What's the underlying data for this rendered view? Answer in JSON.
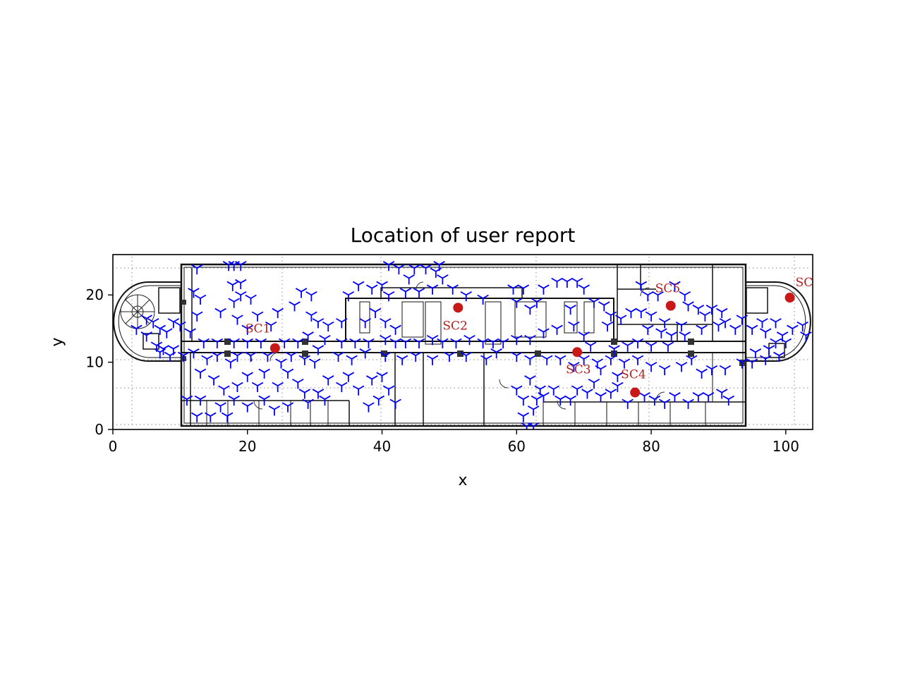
{
  "chart_data": {
    "type": "scatter",
    "title": "Location of user report",
    "xlabel": "x",
    "ylabel": "y",
    "xlim": [
      0,
      104
    ],
    "ylim": [
      0,
      26
    ],
    "xticks": [
      "0",
      "20",
      "40",
      "60",
      "80",
      "100"
    ],
    "yticks": [
      "0",
      "10",
      "20"
    ],
    "grid": false,
    "background": "floor plan",
    "colors": {
      "reports": "#0000ff",
      "small_cells": "#c81818",
      "labels": "#b21e1e"
    },
    "small_cells": [
      {
        "label": "SC1",
        "x": 24.1,
        "y": 12.1
      },
      {
        "label": "SC2",
        "x": 51.3,
        "y": 18.1
      },
      {
        "label": "SC3",
        "x": 69.0,
        "y": 11.5
      },
      {
        "label": "SC4",
        "x": 77.6,
        "y": 5.5
      },
      {
        "label": "SC5",
        "x": 82.9,
        "y": 18.4
      },
      {
        "label": "SC",
        "x": 100.6,
        "y": 19.6
      }
    ],
    "user_reports": {
      "marker": "tri_down",
      "points": [
        [
          12.5,
          24.0
        ],
        [
          17.2,
          24.5
        ],
        [
          18.0,
          24.5
        ],
        [
          19.0,
          24.5
        ],
        [
          12.0,
          20.5
        ],
        [
          13.0,
          19.5
        ],
        [
          12.5,
          17.0
        ],
        [
          16.0,
          17.5
        ],
        [
          18.0,
          19.0
        ],
        [
          19.0,
          20.0
        ],
        [
          20.5,
          19.5
        ],
        [
          18.5,
          16.5
        ],
        [
          20.0,
          15.0
        ],
        [
          21.5,
          17.0
        ],
        [
          23.5,
          15.5
        ],
        [
          24.5,
          17.5
        ],
        [
          17.8,
          21.5
        ],
        [
          19.0,
          21.8
        ],
        [
          28.0,
          20.5
        ],
        [
          29.5,
          20.0
        ],
        [
          27.0,
          18.5
        ],
        [
          29.5,
          17.0
        ],
        [
          30.5,
          16.0
        ],
        [
          32.0,
          15.5
        ],
        [
          34.0,
          16.0
        ],
        [
          35.0,
          20.0
        ],
        [
          36.5,
          21.5
        ],
        [
          38.5,
          21.0
        ],
        [
          40.0,
          21.5
        ],
        [
          41.0,
          20.0
        ],
        [
          39.0,
          17.5
        ],
        [
          37.5,
          16.0
        ],
        [
          40.5,
          16.0
        ],
        [
          42.0,
          15.0
        ],
        [
          43.5,
          20.5
        ],
        [
          44.0,
          22.5
        ],
        [
          44.8,
          24.0
        ],
        [
          45.5,
          20.5
        ],
        [
          46.5,
          24.0
        ],
        [
          48.0,
          23.5
        ],
        [
          48.5,
          24.5
        ],
        [
          49.0,
          22.5
        ],
        [
          50.5,
          21.0
        ],
        [
          52.5,
          20.0
        ],
        [
          55.0,
          19.5
        ],
        [
          42.5,
          24.0
        ],
        [
          41.0,
          24.5
        ],
        [
          47.5,
          21.0
        ],
        [
          59.5,
          21.0
        ],
        [
          61.0,
          21.0
        ],
        [
          60.0,
          19.0
        ],
        [
          62.0,
          18.0
        ],
        [
          63.0,
          19.0
        ],
        [
          64.0,
          21.0
        ],
        [
          66.0,
          22.0
        ],
        [
          67.5,
          22.0
        ],
        [
          69.0,
          22.0
        ],
        [
          70.0,
          21.0
        ],
        [
          68.0,
          18.0
        ],
        [
          71.5,
          19.0
        ],
        [
          73.0,
          18.5
        ],
        [
          74.0,
          17.0
        ],
        [
          73.5,
          15.5
        ],
        [
          75.5,
          16.5
        ],
        [
          77.0,
          17.5
        ],
        [
          78.5,
          17.5
        ],
        [
          79.5,
          20.0
        ],
        [
          78.5,
          21.5
        ],
        [
          81.0,
          20.0
        ],
        [
          83.5,
          21.5
        ],
        [
          85.0,
          20.0
        ],
        [
          85.5,
          18.5
        ],
        [
          87.0,
          18.0
        ],
        [
          88.0,
          17.0
        ],
        [
          89.0,
          18.0
        ],
        [
          90.5,
          17.5
        ],
        [
          91.0,
          16.0
        ],
        [
          92.5,
          15.0
        ],
        [
          93.5,
          16.5
        ],
        [
          90.0,
          15.5
        ],
        [
          87.5,
          15.0
        ],
        [
          84.5,
          15.5
        ],
        [
          82.0,
          16.0
        ],
        [
          80.0,
          17.0
        ],
        [
          79.5,
          15.0
        ],
        [
          81.5,
          14.5
        ],
        [
          83.0,
          14.0
        ],
        [
          85.0,
          14.0
        ],
        [
          82.5,
          12.5
        ],
        [
          80.0,
          12.5
        ],
        [
          78.0,
          13.0
        ],
        [
          76.5,
          12.5
        ],
        [
          74.5,
          12.0
        ],
        [
          71.0,
          12.5
        ],
        [
          70.0,
          14.0
        ],
        [
          68.5,
          15.5
        ],
        [
          66.0,
          15.0
        ],
        [
          64.0,
          14.5
        ],
        [
          62.0,
          13.5
        ],
        [
          60.0,
          13.5
        ],
        [
          58.0,
          13.0
        ],
        [
          56.5,
          13.0
        ],
        [
          55.0,
          13.0
        ],
        [
          53.0,
          13.5
        ],
        [
          51.0,
          13.0
        ],
        [
          49.0,
          13.0
        ],
        [
          47.5,
          13.5
        ],
        [
          45.5,
          13.0
        ],
        [
          43.5,
          13.0
        ],
        [
          42.0,
          13.0
        ],
        [
          40.5,
          13.5
        ],
        [
          38.0,
          13.0
        ],
        [
          36.0,
          13.0
        ],
        [
          34.0,
          13.0
        ],
        [
          31.5,
          13.5
        ],
        [
          29.0,
          14.0
        ],
        [
          27.5,
          13.0
        ],
        [
          25.5,
          13.0
        ],
        [
          22.0,
          13.0
        ],
        [
          20.0,
          13.0
        ],
        [
          18.0,
          13.0
        ],
        [
          15.5,
          13.0
        ],
        [
          13.5,
          13.0
        ],
        [
          11.5,
          14.5
        ],
        [
          10.0,
          15.5
        ],
        [
          9.0,
          16.0
        ],
        [
          8.0,
          14.5
        ],
        [
          7.0,
          15.0
        ],
        [
          6.0,
          16.0
        ],
        [
          5.0,
          16.5
        ],
        [
          3.5,
          15.0
        ],
        [
          5.0,
          14.0
        ],
        [
          6.5,
          12.5
        ],
        [
          7.5,
          12.0
        ],
        [
          9.0,
          12.0
        ],
        [
          8.5,
          11.0
        ],
        [
          7.0,
          11.5
        ],
        [
          10.5,
          11.0
        ],
        [
          12.0,
          11.5
        ],
        [
          14.0,
          10.5
        ],
        [
          15.5,
          11.0
        ],
        [
          17.5,
          10.0
        ],
        [
          18.5,
          11.0
        ],
        [
          20.5,
          11.0
        ],
        [
          23.0,
          11.0
        ],
        [
          25.0,
          10.0
        ],
        [
          26.5,
          11.0
        ],
        [
          28.5,
          10.5
        ],
        [
          30.0,
          10.0
        ],
        [
          30.5,
          12.0
        ],
        [
          33.5,
          11.0
        ],
        [
          35.5,
          10.5
        ],
        [
          37.5,
          11.5
        ],
        [
          40.5,
          11.0
        ],
        [
          43.0,
          10.5
        ],
        [
          45.0,
          11.0
        ],
        [
          47.5,
          10.5
        ],
        [
          50.0,
          11.0
        ],
        [
          52.5,
          11.0
        ],
        [
          55.5,
          10.5
        ],
        [
          57.0,
          11.5
        ],
        [
          60.0,
          11.0
        ],
        [
          62.0,
          10.5
        ],
        [
          64.5,
          10.5
        ],
        [
          66.5,
          10.5
        ],
        [
          68.5,
          9.5
        ],
        [
          70.0,
          10.5
        ],
        [
          72.0,
          10.0
        ],
        [
          74.0,
          10.5
        ],
        [
          76.0,
          10.0
        ],
        [
          78.0,
          10.5
        ],
        [
          80.0,
          9.5
        ],
        [
          82.0,
          9.0
        ],
        [
          84.5,
          9.5
        ],
        [
          86.0,
          10.5
        ],
        [
          87.5,
          8.5
        ],
        [
          89.0,
          9.0
        ],
        [
          91.0,
          9.0
        ],
        [
          93.5,
          10.0
        ],
        [
          95.5,
          11.5
        ],
        [
          97.5,
          12.0
        ],
        [
          98.5,
          13.0
        ],
        [
          99.5,
          14.0
        ],
        [
          97.0,
          14.5
        ],
        [
          95.0,
          15.0
        ],
        [
          96.5,
          16.0
        ],
        [
          98.5,
          16.0
        ],
        [
          101.0,
          15.0
        ],
        [
          102.5,
          15.5
        ],
        [
          103.0,
          14.0
        ],
        [
          100.0,
          13.0
        ],
        [
          99.0,
          11.0
        ],
        [
          97.0,
          10.5
        ],
        [
          95.0,
          10.0
        ],
        [
          13.0,
          8.5
        ],
        [
          15.0,
          7.5
        ],
        [
          16.5,
          6.0
        ],
        [
          18.5,
          6.5
        ],
        [
          20.0,
          8.0
        ],
        [
          21.5,
          6.5
        ],
        [
          22.5,
          8.5
        ],
        [
          24.5,
          6.5
        ],
        [
          26.0,
          8.5
        ],
        [
          27.5,
          7.0
        ],
        [
          28.5,
          5.5
        ],
        [
          30.5,
          5.5
        ],
        [
          32.0,
          7.5
        ],
        [
          34.0,
          6.5
        ],
        [
          35.0,
          8.0
        ],
        [
          36.5,
          6.0
        ],
        [
          38.5,
          7.5
        ],
        [
          38.0,
          3.5
        ],
        [
          39.5,
          4.5
        ],
        [
          41.0,
          6.0
        ],
        [
          42.0,
          4.0
        ],
        [
          40.0,
          8.0
        ],
        [
          31.5,
          4.5
        ],
        [
          29.0,
          4.0
        ],
        [
          26.0,
          3.5
        ],
        [
          24.0,
          3.0
        ],
        [
          22.5,
          4.5
        ],
        [
          20.0,
          3.5
        ],
        [
          18.0,
          4.5
        ],
        [
          16.0,
          3.5
        ],
        [
          14.5,
          2.0
        ],
        [
          12.5,
          2.0
        ],
        [
          11.0,
          4.5
        ],
        [
          13.0,
          4.5
        ],
        [
          17.0,
          2.0
        ],
        [
          62.0,
          7.5
        ],
        [
          63.5,
          6.0
        ],
        [
          63.0,
          4.5
        ],
        [
          62.5,
          3.0
        ],
        [
          61.0,
          2.0
        ],
        [
          62.5,
          0.5
        ],
        [
          61.5,
          0.5
        ],
        [
          64.0,
          5.0
        ],
        [
          65.5,
          6.0
        ],
        [
          66.5,
          4.5
        ],
        [
          68.0,
          4.5
        ],
        [
          69.0,
          6.0
        ],
        [
          70.5,
          5.5
        ],
        [
          71.5,
          7.0
        ],
        [
          72.5,
          5.0
        ],
        [
          74.0,
          5.5
        ],
        [
          75.0,
          6.5
        ],
        [
          76.5,
          4.0
        ],
        [
          79.0,
          5.0
        ],
        [
          80.5,
          4.5
        ],
        [
          82.0,
          4.0
        ],
        [
          83.5,
          5.0
        ],
        [
          85.5,
          4.0
        ],
        [
          87.0,
          5.0
        ],
        [
          88.5,
          5.0
        ],
        [
          90.5,
          5.5
        ],
        [
          91.5,
          4.5
        ],
        [
          72.5,
          9.0
        ],
        [
          75.0,
          8.0
        ],
        [
          60.0,
          6.0
        ],
        [
          61.0,
          4.5
        ]
      ]
    }
  }
}
